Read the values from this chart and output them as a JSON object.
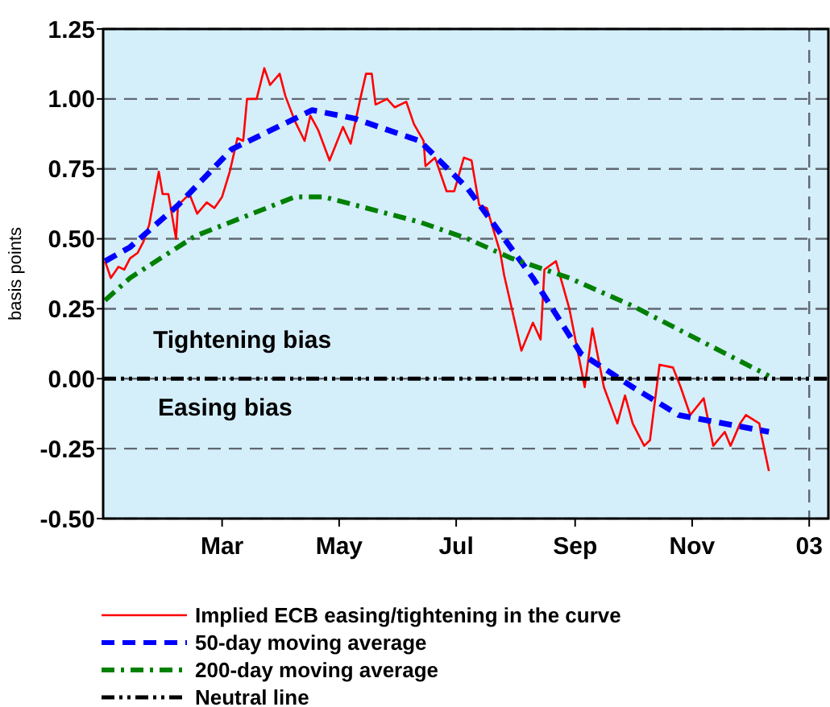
{
  "chart_data": {
    "type": "line",
    "ylabel": "basis points",
    "xlim": [
      "2001-12-29",
      "2003-01-11"
    ],
    "xticks": [
      {
        "value": "2002-03-01",
        "label": "Mar"
      },
      {
        "value": "2002-05-01",
        "label": "May"
      },
      {
        "value": "2002-07-01",
        "label": "Jul"
      },
      {
        "value": "2002-09-01",
        "label": "Sep"
      },
      {
        "value": "2002-11-01",
        "label": "Nov"
      },
      {
        "value": "2003-01-01",
        "label": "03"
      }
    ],
    "ylim": [
      -0.5,
      1.25
    ],
    "yticks": [
      {
        "value": -0.5,
        "label": "-0.50"
      },
      {
        "value": -0.25,
        "label": "-0.25"
      },
      {
        "value": 0,
        "label": "0.00"
      },
      {
        "value": 0.25,
        "label": "0.25"
      },
      {
        "value": 0.5,
        "label": "0.50"
      },
      {
        "value": 0.75,
        "label": "0.75"
      },
      {
        "value": 1,
        "label": "1.00"
      },
      {
        "value": 1.25,
        "label": "1.25"
      }
    ],
    "grid": "y",
    "legend": "bottom",
    "ref_lines": [
      {
        "axis": "x",
        "value": "2003-01-01",
        "line_style": "dashed",
        "color": "#606870"
      }
    ],
    "annotations": [
      "Tightening bias",
      "Easing bias"
    ],
    "series": [
      {
        "name": "Implied ECB easing/tightening in the curve",
        "color": "#ff0000",
        "line_style": "solid",
        "x": [
          "2001-12-30",
          "2002-01-02",
          "2002-01-06",
          "2002-01-09",
          "2002-01-12",
          "2002-01-16",
          "2002-01-19",
          "2002-01-22",
          "2002-01-27",
          "2002-01-29",
          "2002-02-01",
          "2002-02-05",
          "2002-02-06",
          "2002-02-12",
          "2002-02-16",
          "2002-02-21",
          "2002-02-25",
          "2002-03-01",
          "2002-03-05",
          "2002-03-09",
          "2002-03-12",
          "2002-03-14",
          "2002-03-19",
          "2002-03-23",
          "2002-03-26",
          "2002-03-31",
          "2002-04-03",
          "2002-04-08",
          "2002-04-13",
          "2002-04-16",
          "2002-04-20",
          "2002-04-26",
          "2002-05-03",
          "2002-05-07",
          "2002-05-12",
          "2002-05-15",
          "2002-05-18",
          "2002-05-20",
          "2002-05-26",
          "2002-05-30",
          "2002-06-05",
          "2002-06-09",
          "2002-06-14",
          "2002-06-15",
          "2002-06-20",
          "2002-06-26",
          "2002-06-30",
          "2002-07-05",
          "2002-07-09",
          "2002-07-13",
          "2002-07-17",
          "2002-07-24",
          "2002-07-26",
          "2002-08-04",
          "2002-08-10",
          "2002-08-14",
          "2002-08-16",
          "2002-08-22",
          "2002-08-29",
          "2002-09-06",
          "2002-09-10",
          "2002-09-16",
          "2002-09-23",
          "2002-09-27",
          "2002-10-01",
          "2002-10-07",
          "2002-10-10",
          "2002-10-15",
          "2002-10-22",
          "2002-10-26",
          "2002-10-31",
          "2002-11-07",
          "2002-11-12",
          "2002-11-18",
          "2002-11-21",
          "2002-11-26",
          "2002-11-29",
          "2002-12-06",
          "2002-12-07",
          "2002-12-11"
        ],
        "values": [
          0.42,
          0.36,
          0.4,
          0.39,
          0.43,
          0.45,
          0.49,
          0.55,
          0.74,
          0.66,
          0.66,
          0.5,
          0.62,
          0.66,
          0.59,
          0.63,
          0.61,
          0.65,
          0.74,
          0.86,
          0.85,
          1.0,
          1.0,
          1.11,
          1.05,
          1.09,
          1.01,
          0.92,
          0.85,
          0.94,
          0.89,
          0.78,
          0.9,
          0.84,
          1.0,
          1.09,
          1.09,
          0.98,
          1.0,
          0.97,
          0.99,
          0.91,
          0.85,
          0.76,
          0.79,
          0.67,
          0.67,
          0.79,
          0.78,
          0.62,
          0.61,
          0.45,
          0.37,
          0.1,
          0.2,
          0.14,
          0.39,
          0.42,
          0.25,
          -0.03,
          0.18,
          -0.03,
          -0.16,
          -0.06,
          -0.16,
          -0.24,
          -0.22,
          0.05,
          0.04,
          -0.03,
          -0.13,
          -0.07,
          -0.24,
          -0.19,
          -0.24,
          -0.16,
          -0.13,
          -0.16,
          -0.2,
          -0.33
        ]
      },
      {
        "name": "50-day moving average",
        "color": "#0000ff",
        "line_style": "dashed",
        "x": [
          "2001-12-30",
          "2002-01-12",
          "2002-02-06",
          "2002-03-06",
          "2002-04-17",
          "2002-05-09",
          "2002-06-12",
          "2002-07-07",
          "2002-08-10",
          "2002-09-04",
          "2002-10-01",
          "2002-10-25",
          "2002-12-11"
        ],
        "values": [
          0.42,
          0.47,
          0.62,
          0.82,
          0.96,
          0.93,
          0.85,
          0.68,
          0.36,
          0.09,
          -0.03,
          -0.13,
          -0.19
        ]
      },
      {
        "name": "200-day moving average",
        "color": "#008000",
        "line_style": "dashdot",
        "x": [
          "2001-12-30",
          "2002-01-12",
          "2002-02-15",
          "2002-04-08",
          "2002-04-23",
          "2002-06-12",
          "2002-07-07",
          "2002-07-30",
          "2002-08-29",
          "2002-10-01",
          "2002-12-11"
        ],
        "values": [
          0.28,
          0.36,
          0.51,
          0.65,
          0.65,
          0.56,
          0.5,
          0.43,
          0.36,
          0.26,
          0.01
        ]
      },
      {
        "name": "Neutral line",
        "color": "#000000",
        "line_style": "dashdotdot",
        "x": [
          "2001-12-29",
          "2003-01-11"
        ],
        "values": [
          0,
          0
        ]
      }
    ]
  }
}
